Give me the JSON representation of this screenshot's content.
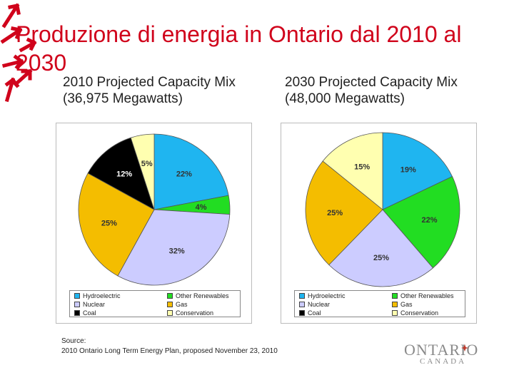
{
  "slide": {
    "title": "Produzione di energia in Ontario dal 2010 al 2030"
  },
  "chart_data": [
    {
      "type": "pie",
      "title": "2010 Projected Capacity Mix",
      "subtitle": "(36,975 Megawatts)",
      "slices": [
        {
          "key": "hydro",
          "label": "Hydroelectric",
          "value": 22,
          "text": "22%"
        },
        {
          "key": "renew",
          "label": "Other Renewables",
          "value": 4,
          "text": "4%"
        },
        {
          "key": "nuclear",
          "label": "Nuclear",
          "value": 32,
          "text": "32%"
        },
        {
          "key": "gas",
          "label": "Gas",
          "value": 25,
          "text": "25%"
        },
        {
          "key": "coal",
          "label": "Coal",
          "value": 12,
          "text": "12%"
        },
        {
          "key": "cons",
          "label": "Conservation",
          "value": 5,
          "text": "5%"
        }
      ]
    },
    {
      "type": "pie",
      "title": "2030 Projected Capacity Mix",
      "subtitle": "(48,000 Megawatts)",
      "slices": [
        {
          "key": "hydro",
          "label": "Hydroelectric",
          "value": 19,
          "text": "19%"
        },
        {
          "key": "renew",
          "label": "Other Renewables",
          "value": 22,
          "text": "22%"
        },
        {
          "key": "nuclear",
          "label": "Nuclear",
          "value": 25,
          "text": "25%"
        },
        {
          "key": "gas",
          "label": "Gas",
          "value": 25,
          "text": "25%"
        },
        {
          "key": "coal",
          "label": "Coal",
          "value": 0,
          "text": ""
        },
        {
          "key": "cons",
          "label": "Conservation",
          "value": 15,
          "text": "15%"
        }
      ]
    }
  ],
  "legend": {
    "items": [
      {
        "key": "hydro",
        "label": "Hydroelectric"
      },
      {
        "key": "renew",
        "label": "Other Renewables"
      },
      {
        "key": "nuclear",
        "label": "Nuclear"
      },
      {
        "key": "gas",
        "label": "Gas"
      },
      {
        "key": "coal",
        "label": "Coal"
      },
      {
        "key": "cons",
        "label": "Conservation"
      }
    ]
  },
  "colors": {
    "hydro": "#1fb5f0",
    "renew": "#22dd22",
    "nuclear": "#ccccff",
    "gas": "#f4bd00",
    "coal": "#000000",
    "cons": "#ffffb0",
    "title": "#d0021b"
  },
  "source": {
    "label": "Source:",
    "text": "2010 Ontario Long Term Energy Plan, proposed November 23, 2010"
  },
  "logo": {
    "word": "ONTARIO",
    "sub": "CANADA"
  }
}
